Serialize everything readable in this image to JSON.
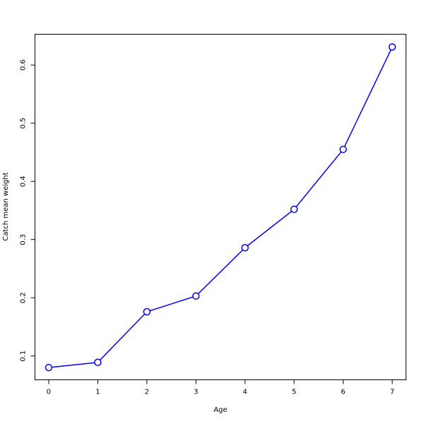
{
  "chart_data": {
    "type": "line",
    "title": "",
    "xlabel": "Age",
    "ylabel": "Catch mean weight",
    "x": [
      0,
      1,
      2,
      3,
      4,
      5,
      6,
      7
    ],
    "values": [
      0.08,
      0.089,
      0.176,
      0.203,
      0.286,
      0.352,
      0.455,
      0.631
    ],
    "xlim": [
      -0.28,
      7.28
    ],
    "ylim": [
      0.059,
      0.653
    ],
    "xticks": [
      "0",
      "1",
      "2",
      "3",
      "4",
      "5",
      "6",
      "7"
    ],
    "yticks": [
      "0.1",
      "0.2",
      "0.3",
      "0.4",
      "0.5",
      "0.6"
    ],
    "grid": false,
    "line_color": "#0000ff",
    "marker": "open-circle"
  }
}
